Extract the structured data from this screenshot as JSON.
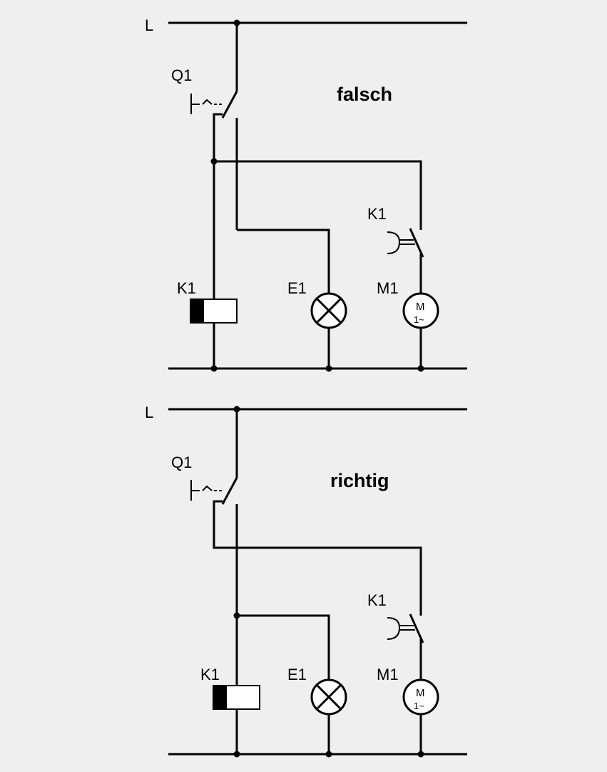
{
  "diagrams": [
    {
      "title": "falsch",
      "line_label": "L",
      "breaker_label": "Q1",
      "relay_label": "K1",
      "contact_label": "K1",
      "lamp_label": "E1",
      "motor_label": "M1",
      "motor_text": "M",
      "motor_sub": "1~"
    },
    {
      "title": "richtig",
      "line_label": "L",
      "breaker_label": "Q1",
      "relay_label": "K1",
      "contact_label": "K1",
      "lamp_label": "E1",
      "motor_label": "M1",
      "motor_text": "M",
      "motor_sub": "1~"
    }
  ]
}
